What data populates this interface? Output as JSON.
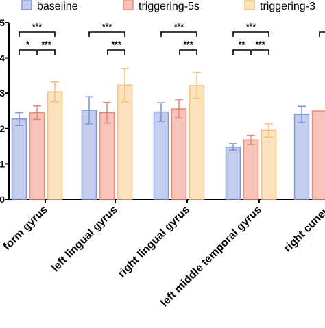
{
  "chart_data": {
    "type": "bar",
    "legend": {
      "placement": "top",
      "items": [
        {
          "label": "baseline",
          "fill": "#c4cdee",
          "stroke": "#7f97d8"
        },
        {
          "label": "triggering-5s",
          "fill": "#f8c3b8",
          "stroke": "#ee8a7a"
        },
        {
          "label": "triggering-3",
          "fill": "#fde3bd",
          "stroke": "#f2c17f"
        }
      ]
    },
    "y_ticks": [
      "5",
      "4",
      "3",
      "2",
      "1",
      "0"
    ],
    "ylim": [
      0,
      5
    ],
    "categories": [
      "form gyrus",
      "left lingual gyrus",
      "right lingual gyrus",
      "left middle temporal gyrus",
      "right cuneu"
    ],
    "series": [
      {
        "name": "baseline",
        "color": "#c4cdee",
        "stroke": "#7f97d8",
        "values": [
          2.27,
          2.52,
          2.47,
          1.48,
          2.4
        ],
        "errors": [
          0.18,
          0.38,
          0.26,
          0.09,
          0.23
        ]
      },
      {
        "name": "triggering-5s",
        "color": "#f8c3b8",
        "stroke": "#ee8a7a",
        "values": [
          2.45,
          2.45,
          2.56,
          1.68,
          2.5
        ],
        "errors": [
          0.19,
          0.29,
          0.26,
          0.13,
          null
        ]
      },
      {
        "name": "triggering-3",
        "color": "#fde3bd",
        "stroke": "#f2c17f",
        "values": [
          3.04,
          3.23,
          3.22,
          1.95,
          null
        ],
        "errors": [
          0.28,
          0.47,
          0.37,
          0.19,
          null
        ]
      }
    ],
    "significance": [
      {
        "group": 0,
        "from": 0,
        "to": 2,
        "level": 0,
        "label": "***"
      },
      {
        "group": 0,
        "from": 0,
        "to": 1,
        "level": 1,
        "label": "*"
      },
      {
        "group": 0,
        "from": 1,
        "to": 2,
        "level": 1,
        "label": "***"
      },
      {
        "group": 1,
        "from": 0,
        "to": 2,
        "level": 0,
        "label": "***"
      },
      {
        "group": 1,
        "from": 1,
        "to": 2,
        "level": 1,
        "label": "***"
      },
      {
        "group": 2,
        "from": 0,
        "to": 2,
        "level": 0,
        "label": "***"
      },
      {
        "group": 2,
        "from": 1,
        "to": 2,
        "level": 1,
        "label": "***"
      },
      {
        "group": 3,
        "from": 0,
        "to": 2,
        "level": 0,
        "label": "***"
      },
      {
        "group": 3,
        "from": 0,
        "to": 1,
        "level": 1,
        "label": "**"
      },
      {
        "group": 3,
        "from": 1,
        "to": 2,
        "level": 1,
        "label": "***"
      },
      {
        "group": 4,
        "from": 1,
        "to": 2,
        "level": 0,
        "label": "*"
      }
    ],
    "grid": false
  }
}
